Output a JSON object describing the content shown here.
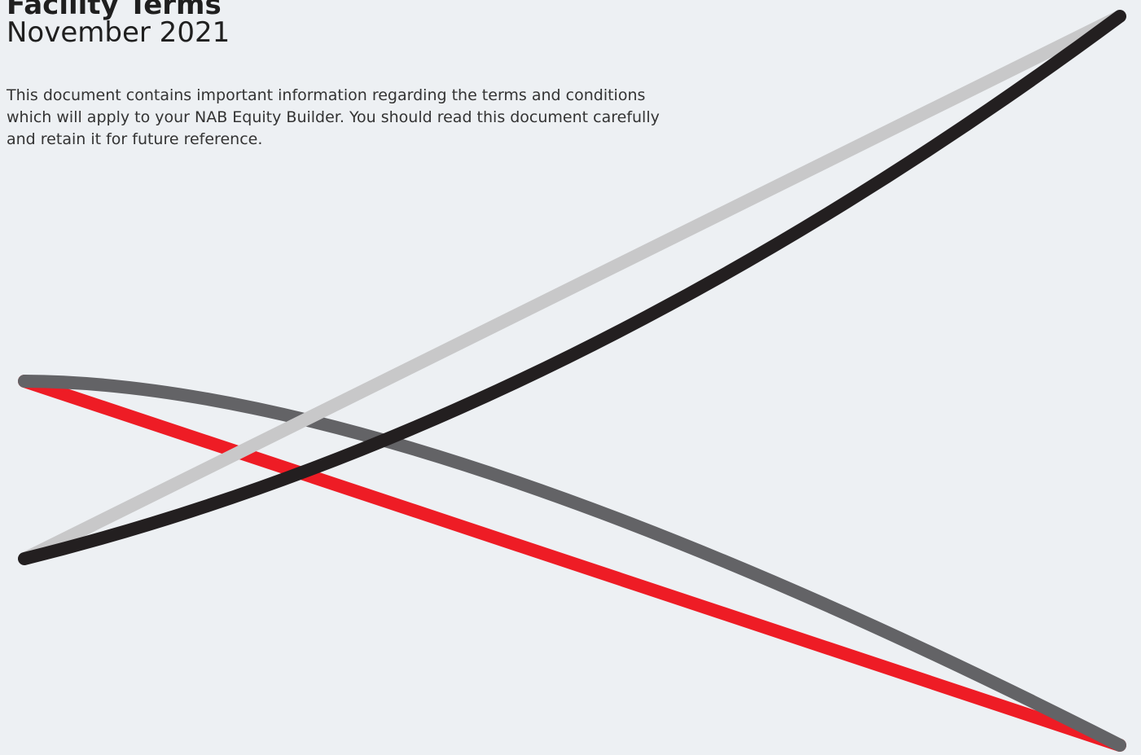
{
  "header": {
    "title": "Facility Terms",
    "subtitle": "November 2021"
  },
  "intro": {
    "lines": [
      "This document contains important information regarding the terms and conditions",
      "which will apply to your NAB Equity Builder. You should read this document carefully",
      "and retain it for future reference."
    ]
  }
}
